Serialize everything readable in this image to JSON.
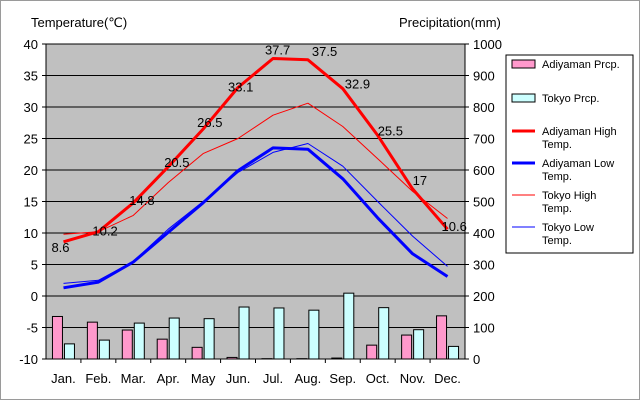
{
  "chart_data": {
    "type": "bar+line",
    "categories": [
      "Jan.",
      "Feb.",
      "Mar.",
      "Apr.",
      "May",
      "Jun.",
      "Jul.",
      "Aug.",
      "Sep.",
      "Oct.",
      "Nov.",
      "Dec."
    ],
    "left_axis": {
      "label": "Temperature(℃)",
      "ylim": [
        -10,
        40
      ],
      "ticks": [
        -10,
        -5,
        0,
        5,
        10,
        15,
        20,
        25,
        30,
        35,
        40
      ]
    },
    "right_axis": {
      "label": "Precipitation(mm)",
      "ylim": [
        0,
        1000
      ],
      "ticks": [
        0,
        100,
        200,
        300,
        400,
        500,
        600,
        700,
        800,
        900,
        1000
      ]
    },
    "grid": true,
    "legend_position": "right",
    "bar_series": [
      {
        "name": "Adiyaman Prcp.",
        "color": "#ff99cc",
        "values": [
          135,
          117,
          92,
          63,
          37,
          5,
          1,
          1,
          3,
          44,
          76,
          137
        ]
      },
      {
        "name": "Tokyo Prcp.",
        "color": "#ccffff",
        "values": [
          48,
          60,
          114,
          130,
          128,
          165,
          162,
          155,
          209,
          163,
          93,
          40
        ]
      }
    ],
    "line_series": [
      {
        "name": "Adiyaman High Temp.",
        "color": "#ff0000",
        "width": 3,
        "axis": "left",
        "values": [
          8.6,
          10.2,
          14.8,
          20.5,
          26.5,
          33.1,
          37.7,
          37.5,
          32.9,
          25.5,
          17,
          10.6
        ],
        "labels": [
          "8.6",
          "10.2",
          "14.8",
          "20.5",
          "26.5",
          "33.1",
          "37.7",
          "37.5",
          "32.9",
          "25.5",
          "17",
          "10.6"
        ]
      },
      {
        "name": "Adiyaman Low Temp.",
        "color": "#0000ff",
        "width": 3,
        "axis": "left",
        "values": [
          1.3,
          2.2,
          5.4,
          10.1,
          14.8,
          19.9,
          23.5,
          23.3,
          18.6,
          12.4,
          6.7,
          3.1
        ]
      },
      {
        "name": "Tokyo High Temp.",
        "color": "#ff0000",
        "width": 1,
        "axis": "left",
        "values": [
          9.8,
          10.2,
          12.8,
          18.0,
          22.6,
          25.0,
          28.7,
          30.6,
          26.9,
          21.8,
          16.6,
          12.3
        ]
      },
      {
        "name": "Tokyo Low Temp.",
        "color": "#0000ff",
        "width": 1,
        "axis": "left",
        "values": [
          2.0,
          2.5,
          5.5,
          10.6,
          15.0,
          19.6,
          22.8,
          24.2,
          20.6,
          15.0,
          9.5,
          4.7
        ]
      }
    ],
    "legend_labels": [
      [
        "Adiyaman Prcp."
      ],
      [
        "Tokyo Prcp."
      ],
      [
        "Adiyaman High",
        "Temp."
      ],
      [
        "Adiyaman Low",
        "Temp."
      ],
      [
        "Tokyo High",
        "Temp."
      ],
      [
        "Tokyo Low",
        "Temp."
      ]
    ]
  }
}
